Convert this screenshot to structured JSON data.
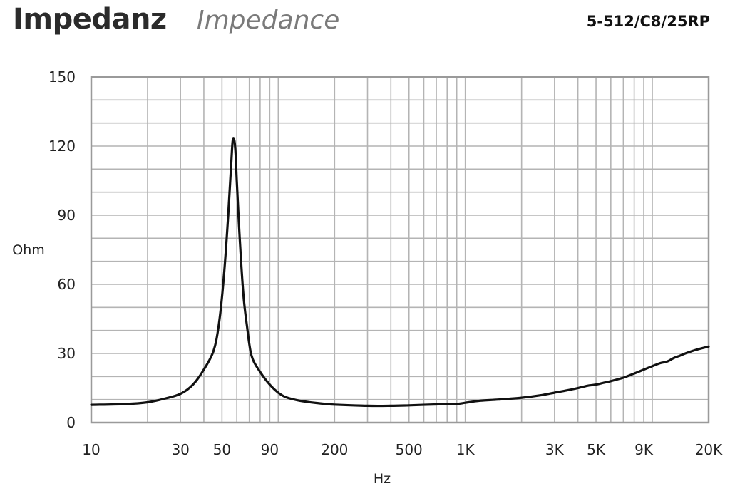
{
  "header": {
    "title": "Impedanz",
    "subtitle": "Impedance",
    "model": "5-512/C8/25RP"
  },
  "chart_data": {
    "type": "line",
    "xscale": "log",
    "xlim": [
      10,
      20000
    ],
    "ylim": [
      0,
      150
    ],
    "xlabel": "Hz",
    "ylabel": "Ohm",
    "grid": true,
    "x_ticks": [
      {
        "value": 10,
        "label": "10"
      },
      {
        "value": 30,
        "label": "30"
      },
      {
        "value": 50,
        "label": "50"
      },
      {
        "value": 90,
        "label": "90"
      },
      {
        "value": 200,
        "label": "200"
      },
      {
        "value": 500,
        "label": "500"
      },
      {
        "value": 1000,
        "label": "1K"
      },
      {
        "value": 3000,
        "label": "3K"
      },
      {
        "value": 5000,
        "label": "5K"
      },
      {
        "value": 9000,
        "label": "9K"
      },
      {
        "value": 20000,
        "label": "20K"
      }
    ],
    "y_ticks": [
      {
        "value": 0,
        "label": "0"
      },
      {
        "value": 30,
        "label": "30"
      },
      {
        "value": 60,
        "label": "60"
      },
      {
        "value": 90,
        "label": "90"
      },
      {
        "value": 120,
        "label": "120"
      },
      {
        "value": 150,
        "label": "150"
      }
    ],
    "series": [
      {
        "color": "#111111",
        "points": [
          [
            10,
            7.7
          ],
          [
            15,
            8.0
          ],
          [
            20,
            8.8
          ],
          [
            25,
            10.5
          ],
          [
            30,
            12.5
          ],
          [
            35,
            16.5
          ],
          [
            40,
            23
          ],
          [
            45,
            31
          ],
          [
            48,
            42
          ],
          [
            51,
            62
          ],
          [
            54,
            90
          ],
          [
            56,
            112
          ],
          [
            57,
            122
          ],
          [
            58,
            123
          ],
          [
            59,
            118
          ],
          [
            60,
            105
          ],
          [
            62,
            82
          ],
          [
            65,
            56
          ],
          [
            68,
            42
          ],
          [
            72,
            29
          ],
          [
            80,
            22
          ],
          [
            90,
            16.5
          ],
          [
            100,
            13
          ],
          [
            110,
            11
          ],
          [
            130,
            9.5
          ],
          [
            160,
            8.5
          ],
          [
            200,
            7.8
          ],
          [
            300,
            7.3
          ],
          [
            400,
            7.3
          ],
          [
            500,
            7.5
          ],
          [
            700,
            7.9
          ],
          [
            900,
            8.1
          ],
          [
            1000,
            8.6
          ],
          [
            1200,
            9.5
          ],
          [
            1500,
            10
          ],
          [
            2000,
            10.8
          ],
          [
            2500,
            11.8
          ],
          [
            3000,
            13
          ],
          [
            3500,
            14
          ],
          [
            4000,
            15
          ],
          [
            4500,
            16
          ],
          [
            5000,
            16.5
          ],
          [
            5500,
            17.3
          ],
          [
            6000,
            18
          ],
          [
            7000,
            19.5
          ],
          [
            8000,
            21.3
          ],
          [
            9000,
            23
          ],
          [
            10000,
            24.5
          ],
          [
            11000,
            25.8
          ],
          [
            12000,
            26.5
          ],
          [
            13000,
            28
          ],
          [
            14000,
            29
          ],
          [
            15000,
            30
          ],
          [
            17000,
            31.5
          ],
          [
            20000,
            33
          ]
        ]
      }
    ]
  }
}
